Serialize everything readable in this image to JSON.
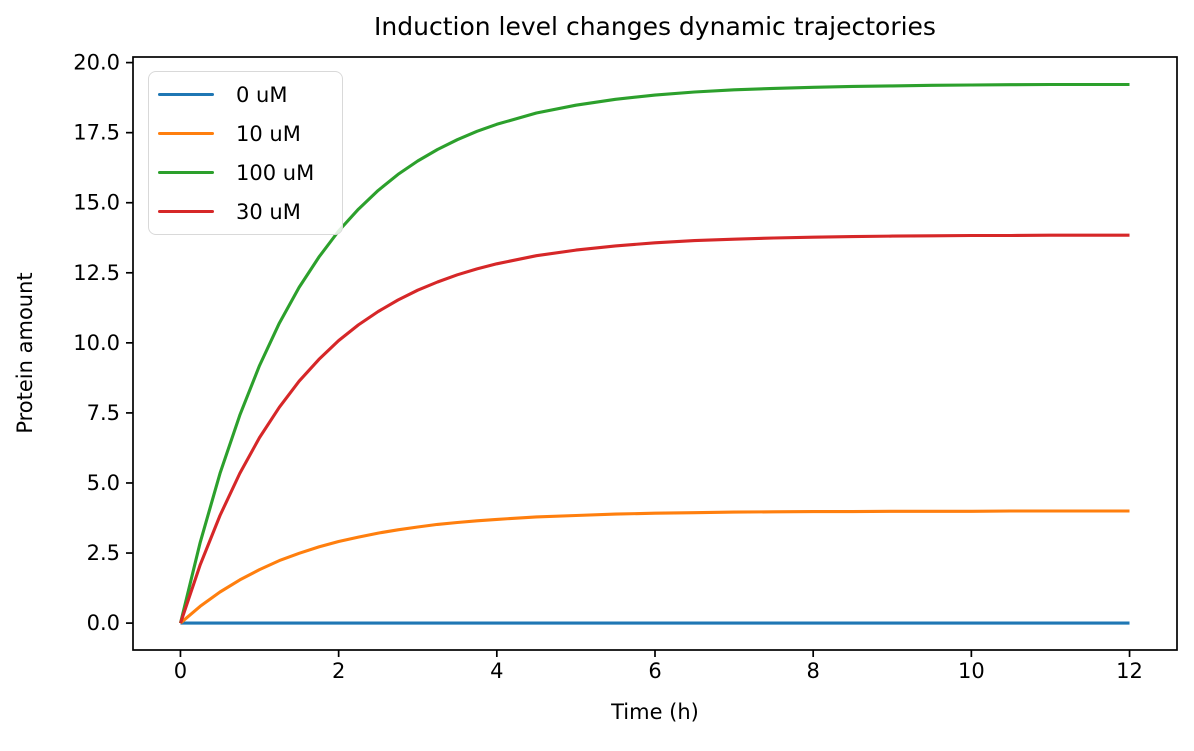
{
  "chart_data": {
    "type": "line",
    "title": "Induction level changes dynamic trajectories",
    "xlabel": "Time (h)",
    "ylabel": "Protein amount",
    "xlim": [
      -0.6,
      12.6
    ],
    "ylim": [
      -0.96,
      20.2
    ],
    "grid": false,
    "legend_position": "upper left",
    "xticks": {
      "values": [
        0,
        2,
        4,
        6,
        8,
        10,
        12
      ],
      "labels": [
        "0",
        "2",
        "4",
        "6",
        "8",
        "10",
        "12"
      ]
    },
    "yticks": {
      "values": [
        0,
        2.5,
        5,
        7.5,
        10,
        12.5,
        15,
        17.5,
        20
      ],
      "labels": [
        "0.0",
        "2.5",
        "5.0",
        "7.5",
        "10.0",
        "12.5",
        "15.0",
        "17.5",
        "20.0"
      ]
    },
    "x": [
      0,
      0.25,
      0.5,
      0.75,
      1,
      1.25,
      1.5,
      1.75,
      2,
      2.25,
      2.5,
      2.75,
      3,
      3.25,
      3.5,
      3.75,
      4,
      4.5,
      5,
      5.5,
      6,
      6.5,
      7,
      7.5,
      8,
      8.5,
      9,
      9.5,
      10,
      10.5,
      11,
      11.5,
      12
    ],
    "series": [
      {
        "name": "0 uM",
        "color": "#1f77b4",
        "steady_state": 0.0,
        "values": [
          0,
          0,
          0,
          0,
          0,
          0,
          0,
          0,
          0,
          0,
          0,
          0,
          0,
          0,
          0,
          0,
          0,
          0,
          0,
          0,
          0,
          0,
          0,
          0,
          0,
          0,
          0,
          0,
          0,
          0,
          0,
          0,
          0
        ]
      },
      {
        "name": "10 uM",
        "color": "#ff7f0e",
        "steady_state": 4.0,
        "values": [
          0,
          0.6,
          1.11,
          1.54,
          1.91,
          2.23,
          2.49,
          2.72,
          2.91,
          3.07,
          3.21,
          3.33,
          3.43,
          3.52,
          3.59,
          3.65,
          3.7,
          3.79,
          3.84,
          3.89,
          3.92,
          3.94,
          3.96,
          3.97,
          3.98,
          3.98,
          3.99,
          3.99,
          3.99,
          4.0,
          4.0,
          4.0,
          4.0
        ]
      },
      {
        "name": "100 uM",
        "color": "#2ca02c",
        "steady_state": 19.23,
        "values": [
          0,
          2.88,
          5.34,
          7.42,
          9.19,
          10.7,
          11.98,
          13.06,
          13.99,
          14.77,
          15.44,
          16.01,
          16.49,
          16.9,
          17.25,
          17.55,
          17.8,
          18.2,
          18.48,
          18.69,
          18.84,
          18.95,
          19.03,
          19.08,
          19.12,
          19.15,
          19.17,
          19.19,
          19.2,
          19.21,
          19.22,
          19.22,
          19.22
        ]
      },
      {
        "name": "30 uM",
        "color": "#d62728",
        "steady_state": 13.85,
        "values": [
          0,
          2.08,
          3.84,
          5.34,
          6.62,
          7.7,
          8.63,
          9.41,
          10.08,
          10.64,
          11.12,
          11.53,
          11.88,
          12.17,
          12.43,
          12.64,
          12.82,
          13.11,
          13.31,
          13.46,
          13.57,
          13.65,
          13.7,
          13.74,
          13.77,
          13.79,
          13.81,
          13.82,
          13.83,
          13.83,
          13.84,
          13.84,
          13.84
        ]
      }
    ]
  }
}
